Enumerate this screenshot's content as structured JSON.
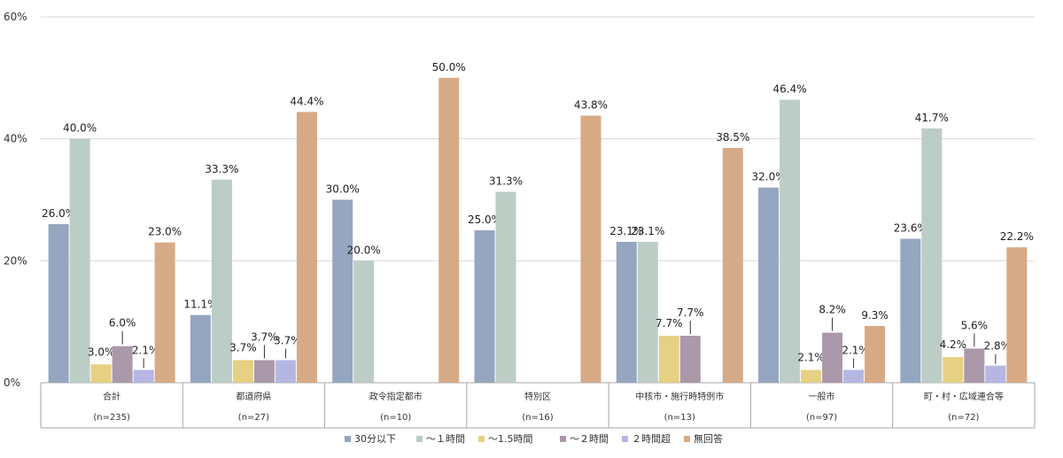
{
  "chart_data": {
    "type": "bar",
    "categories": [
      "合計",
      "都道府県",
      "政令指定都市",
      "特別区",
      "中核市・施行時特例市",
      "一般市",
      "町・村・広域連合等"
    ],
    "category_counts": [
      "(n=235)",
      "(n=27)",
      "(n=10)",
      "(n=16)",
      "(n=13)",
      "(n=97)",
      "(n=72)"
    ],
    "ylim": [
      0,
      60
    ],
    "yticks": [
      0,
      20,
      40,
      60
    ],
    "ytick_labels": [
      "0%",
      "20%",
      "40%",
      "60%"
    ],
    "grid": true,
    "legend_position": "bottom",
    "series": [
      {
        "name": "30分以下",
        "color": "#95a6c0",
        "values": [
          26.0,
          11.1,
          30.0,
          25.0,
          23.1,
          32.0,
          23.6
        ],
        "labels": [
          "26.0%",
          "11.1%",
          "30.0%",
          "25.0%",
          "23.1%",
          "32.0%",
          "23.6%"
        ]
      },
      {
        "name": "～１時間",
        "color": "#bccdc6",
        "values": [
          40.0,
          33.3,
          20.0,
          31.3,
          23.1,
          46.4,
          41.7
        ],
        "labels": [
          "40.0%",
          "33.3%",
          "20.0%",
          "31.3%",
          "23.1%",
          "46.4%",
          "41.7%"
        ]
      },
      {
        "name": "～1.5時間",
        "color": "#e6d083",
        "values": [
          3.0,
          3.7,
          null,
          null,
          7.7,
          2.1,
          4.2
        ],
        "labels": [
          "3.0%",
          "3.7%",
          "",
          "",
          "7.7%",
          "2.1%",
          "4.2%"
        ]
      },
      {
        "name": "～２時間",
        "color": "#ab98a9",
        "values": [
          6.0,
          3.7,
          null,
          null,
          7.7,
          8.2,
          5.6
        ],
        "labels": [
          "6.0%",
          "3.7%",
          "",
          "",
          "7.7%",
          "8.2%",
          "5.6%"
        ]
      },
      {
        "name": "２時間超",
        "color": "#b5b6e2",
        "values": [
          2.1,
          3.7,
          null,
          null,
          null,
          2.1,
          2.8
        ],
        "labels": [
          "2.1%",
          "3.7%",
          "",
          "",
          "",
          "2.1%",
          "2.8%"
        ]
      },
      {
        "name": "無回答",
        "color": "#d7aa86",
        "values": [
          23.0,
          44.4,
          50.0,
          43.8,
          38.5,
          9.3,
          22.2
        ],
        "labels": [
          "23.0%",
          "44.4%",
          "50.0%",
          "43.8%",
          "38.5%",
          "9.3%",
          "22.2%"
        ]
      }
    ]
  }
}
